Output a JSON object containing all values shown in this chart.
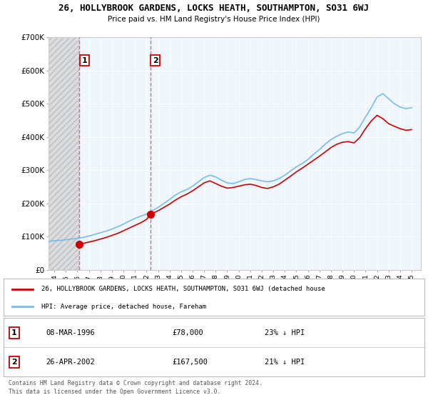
{
  "title_line1": "26, HOLLYBROOK GARDENS, LOCKS HEATH, SOUTHAMPTON, SO31 6WJ",
  "title_line2": "Price paid vs. HM Land Registry's House Price Index (HPI)",
  "legend_label1": "26, HOLLYBROOK GARDENS, LOCKS HEATH, SOUTHAMPTON, SO31 6WJ (detached house",
  "legend_label2": "HPI: Average price, detached house, Fareham",
  "footer1": "Contains HM Land Registry data © Crown copyright and database right 2024.",
  "footer2": "This data is licensed under the Open Government Licence v3.0.",
  "sale1_label": "1",
  "sale1_date": "08-MAR-1996",
  "sale1_price": "£78,000",
  "sale1_hpi": "23% ↓ HPI",
  "sale2_label": "2",
  "sale2_date": "26-APR-2002",
  "sale2_price": "£167,500",
  "sale2_hpi": "21% ↓ HPI",
  "sale1_year": 1996.18,
  "sale1_value": 78000,
  "sale2_year": 2002.32,
  "sale2_value": 167500,
  "hpi_color": "#7abce8",
  "price_color": "#cc0000",
  "dashed_color": "#cc6666",
  "background_plot": "#eef5fb",
  "ylim": [
    0,
    700000
  ],
  "xlim_start": 1993.5,
  "xlim_end": 2025.8,
  "hpi_x": [
    1993.5,
    1994,
    1994.5,
    1995,
    1995.5,
    1996,
    1996.5,
    1997,
    1997.5,
    1998,
    1998.5,
    1999,
    1999.5,
    2000,
    2000.5,
    2001,
    2001.5,
    2002,
    2002.5,
    2003,
    2003.5,
    2004,
    2004.5,
    2005,
    2005.5,
    2006,
    2006.5,
    2007,
    2007.5,
    2008,
    2008.5,
    2009,
    2009.5,
    2010,
    2010.5,
    2011,
    2011.5,
    2012,
    2012.5,
    2013,
    2013.5,
    2014,
    2014.5,
    2015,
    2015.5,
    2016,
    2016.5,
    2017,
    2017.5,
    2018,
    2018.5,
    2019,
    2019.5,
    2020,
    2020.5,
    2021,
    2021.5,
    2022,
    2022.5,
    2023,
    2023.5,
    2024,
    2024.5,
    2025
  ],
  "hpi_y": [
    86000,
    88000,
    89000,
    91000,
    93000,
    95000,
    98000,
    102000,
    107000,
    112000,
    117000,
    123000,
    130000,
    138000,
    147000,
    155000,
    162000,
    168000,
    178000,
    188000,
    200000,
    212000,
    225000,
    235000,
    242000,
    252000,
    265000,
    278000,
    285000,
    280000,
    270000,
    262000,
    260000,
    265000,
    272000,
    275000,
    272000,
    268000,
    265000,
    268000,
    275000,
    285000,
    298000,
    310000,
    320000,
    332000,
    348000,
    362000,
    378000,
    392000,
    402000,
    410000,
    415000,
    412000,
    430000,
    460000,
    488000,
    520000,
    530000,
    515000,
    500000,
    490000,
    485000,
    488000
  ],
  "price_x": [
    1996.18,
    1996.5,
    1997,
    1997.5,
    1998,
    1998.5,
    1999,
    1999.5,
    2000,
    2000.5,
    2001,
    2001.5,
    2002,
    2002.32,
    2002.5,
    2003,
    2003.5,
    2004,
    2004.5,
    2005,
    2005.5,
    2006,
    2006.5,
    2007,
    2007.5,
    2008,
    2008.5,
    2009,
    2009.5,
    2010,
    2010.5,
    2011,
    2011.5,
    2012,
    2012.5,
    2013,
    2013.5,
    2014,
    2014.5,
    2015,
    2015.5,
    2016,
    2016.5,
    2017,
    2017.5,
    2018,
    2018.5,
    2019,
    2019.5,
    2020,
    2020.5,
    2021,
    2021.5,
    2022,
    2022.5,
    2023,
    2023.5,
    2024,
    2024.5,
    2025
  ],
  "price_y": [
    78000,
    80000,
    84000,
    88000,
    93000,
    98000,
    104000,
    110000,
    118000,
    126000,
    134000,
    142000,
    152000,
    167500,
    170000,
    178000,
    188000,
    198000,
    210000,
    220000,
    228000,
    238000,
    250000,
    262000,
    268000,
    260000,
    252000,
    246000,
    248000,
    252000,
    256000,
    258000,
    254000,
    248000,
    245000,
    250000,
    258000,
    270000,
    282000,
    295000,
    306000,
    318000,
    330000,
    342000,
    355000,
    368000,
    378000,
    384000,
    386000,
    382000,
    398000,
    425000,
    448000,
    465000,
    455000,
    440000,
    432000,
    425000,
    420000,
    422000
  ],
  "yticks": [
    0,
    100000,
    200000,
    300000,
    400000,
    500000,
    600000,
    700000
  ],
  "ytick_labels": [
    "£0",
    "£100K",
    "£200K",
    "£300K",
    "£400K",
    "£500K",
    "£600K",
    "£700K"
  ],
  "xtick_years": [
    1994,
    1995,
    1996,
    1997,
    1998,
    1999,
    2000,
    2001,
    2002,
    2003,
    2004,
    2005,
    2006,
    2007,
    2008,
    2009,
    2010,
    2011,
    2012,
    2013,
    2014,
    2015,
    2016,
    2017,
    2018,
    2019,
    2020,
    2021,
    2022,
    2023,
    2024,
    2025
  ]
}
